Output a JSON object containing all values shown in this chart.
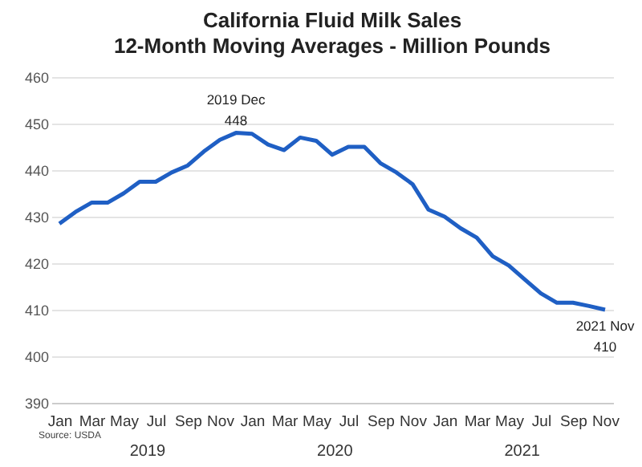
{
  "chart_data": {
    "type": "line",
    "title": "California Fluid Milk Sales\n12-Month Moving Averages - Million Pounds",
    "categories": [
      "Jan",
      null,
      "Mar",
      null,
      "May",
      null,
      "Jul",
      null,
      "Sep",
      null,
      "Nov",
      null,
      "Jan",
      null,
      "Mar",
      null,
      "May",
      null,
      "Jul",
      null,
      "Sep",
      null,
      "Nov",
      null,
      "Jan",
      null,
      "Mar",
      null,
      "May",
      null,
      "Jul",
      null,
      "Sep",
      null,
      "Nov"
    ],
    "series": [
      {
        "color": "#1f5fc4",
        "values": [
          428.5,
          431,
          433,
          433,
          435,
          437.5,
          437.5,
          439.5,
          441,
          444,
          446.5,
          448,
          447.8,
          445.5,
          444.3,
          447,
          446.3,
          443.3,
          445,
          445,
          441.5,
          439.5,
          437,
          431.5,
          430,
          427.5,
          425.5,
          421.5,
          419.5,
          416.5,
          413.5,
          411.5,
          411.5,
          410.8,
          410
        ],
        "value_labels": [
          null,
          null,
          null,
          null,
          null,
          null,
          null,
          null,
          null,
          null,
          null,
          "2019 Dec\n448",
          null,
          null,
          null,
          null,
          null,
          null,
          null,
          null,
          null,
          null,
          null,
          null,
          null,
          null,
          null,
          null,
          null,
          null,
          null,
          null,
          null,
          null,
          "2021 Nov\n410"
        ]
      }
    ],
    "ylim": [
      390,
      460
    ],
    "yticks": [
      390,
      400,
      410,
      420,
      430,
      440,
      450,
      460
    ],
    "grid": "y",
    "marker": "none",
    "line_style": "solid",
    "annotations": [
      "2019",
      "2020",
      "2021",
      "Source: USDA"
    ]
  }
}
